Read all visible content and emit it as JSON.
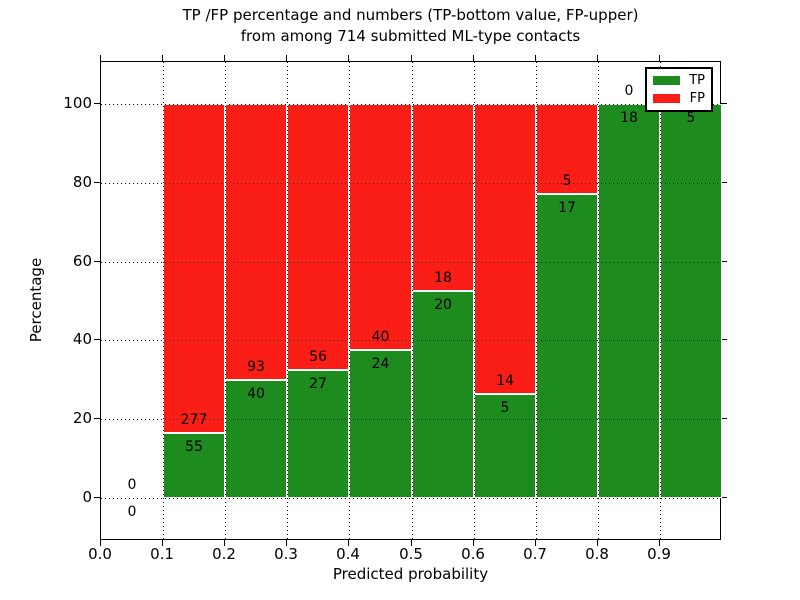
{
  "chart_data": {
    "type": "bar",
    "stacked": true,
    "normalization": "each bin scaled to 100% (bar heights are percentages of bin total)",
    "title": "TP /FP percentage and numbers (TP-bottom value, FP-upper) from among 714 submitted ML-type contacts",
    "title_lines": [
      "TP /FP percentage and numbers (TP-bottom value, FP-upper)",
      "from among 714 submitted ML-type contacts"
    ],
    "xlabel": "Predicted probability",
    "ylabel": "Percentage",
    "total_contacts": 714,
    "bin_width": 0.1,
    "categories": [
      "0.0-0.1",
      "0.1-0.2",
      "0.2-0.3",
      "0.3-0.4",
      "0.4-0.5",
      "0.5-0.6",
      "0.6-0.7",
      "0.7-0.8",
      "0.8-0.9",
      "0.9-1.0"
    ],
    "bin_starts": [
      0.0,
      0.1,
      0.2,
      0.3,
      0.4,
      0.5,
      0.6,
      0.7,
      0.8,
      0.9
    ],
    "series": [
      {
        "name": "TP",
        "color": "#1e8b1e",
        "counts": [
          0,
          55,
          40,
          27,
          24,
          20,
          5,
          17,
          18,
          5
        ]
      },
      {
        "name": "FP",
        "color": "#fb1e17",
        "counts": [
          0,
          277,
          93,
          56,
          40,
          18,
          14,
          5,
          0,
          0
        ]
      }
    ],
    "tp_percent_of_bin": [
      0,
      16.6,
      30.1,
      32.5,
      37.5,
      52.6,
      26.3,
      77.3,
      100,
      100
    ],
    "xticks": [
      {
        "label": "0.0",
        "value": 0.0
      },
      {
        "label": "0.1",
        "value": 0.1
      },
      {
        "label": "0.2",
        "value": 0.2
      },
      {
        "label": "0.3",
        "value": 0.3
      },
      {
        "label": "0.4",
        "value": 0.4
      },
      {
        "label": "0.5",
        "value": 0.5
      },
      {
        "label": "0.6",
        "value": 0.6
      },
      {
        "label": "0.7",
        "value": 0.7
      },
      {
        "label": "0.8",
        "value": 0.8
      },
      {
        "label": "0.9",
        "value": 0.9
      }
    ],
    "yticks": [
      {
        "label": "0",
        "value": 0
      },
      {
        "label": "20",
        "value": 20
      },
      {
        "label": "40",
        "value": 40
      },
      {
        "label": "60",
        "value": 60
      },
      {
        "label": "80",
        "value": 80
      },
      {
        "label": "100",
        "value": 100
      }
    ],
    "xlim": [
      0.0,
      1.0
    ],
    "ylim": [
      -12,
      110
    ],
    "grid": "dotted, drawn above bars",
    "bar_edge_color": "#ffffff",
    "legend": {
      "position": "upper right",
      "entries": [
        "TP",
        "FP"
      ]
    }
  }
}
